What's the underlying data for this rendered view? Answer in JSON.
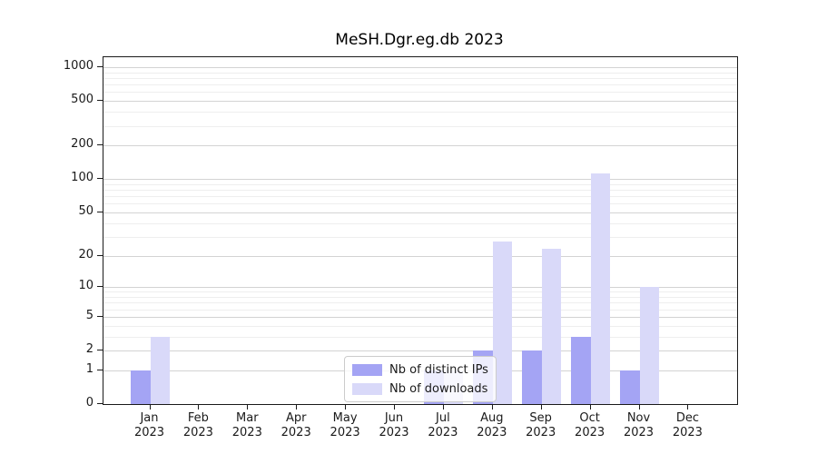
{
  "title": "MeSH.Dgr.eg.db 2023",
  "chart_data": {
    "type": "bar",
    "title": "MeSH.Dgr.eg.db 2023",
    "categories": [
      "Jan 2023",
      "Feb 2023",
      "Mar 2023",
      "Apr 2023",
      "May 2023",
      "Jun 2023",
      "Jul 2023",
      "Aug 2023",
      "Sep 2023",
      "Oct 2023",
      "Nov 2023",
      "Dec 2023"
    ],
    "series": [
      {
        "name": "Nb of distinct IPs",
        "color": "#a4a4f4",
        "values": [
          1,
          0,
          0,
          0,
          0,
          0,
          1,
          2,
          2,
          3,
          1,
          0
        ]
      },
      {
        "name": "Nb of downloads",
        "color": "#d9d9f9",
        "values": [
          3,
          0,
          0,
          0,
          0,
          0,
          1,
          27,
          23,
          113,
          10,
          0
        ]
      }
    ],
    "yscale": "log1p",
    "ylim": [
      0,
      1200
    ],
    "yticks": [
      0,
      1,
      2,
      5,
      10,
      20,
      50,
      100,
      200,
      500,
      1000
    ],
    "minor_yticks": [
      3,
      4,
      6,
      7,
      8,
      9,
      30,
      40,
      60,
      70,
      80,
      90,
      300,
      400,
      600,
      700,
      800,
      900
    ],
    "grid": true,
    "legend_position": "lower center",
    "xlabel": "",
    "ylabel": ""
  },
  "colors": {
    "bar_distinct_ips": "#a4a4f4",
    "bar_downloads": "#d9d9f9",
    "grid_major": "#d3d3d3",
    "grid_minor": "#eeeeee",
    "axis": "#1a1a1a",
    "legend_border": "#cccccc"
  }
}
